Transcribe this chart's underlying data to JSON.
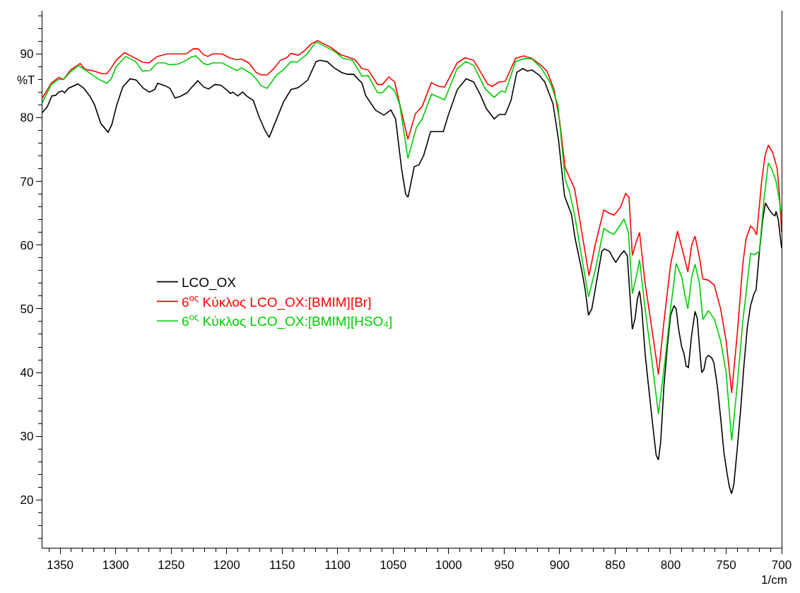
{
  "chart_data": {
    "type": "line",
    "xlabel": "1/cm",
    "ylabel": "%T",
    "xlim": [
      1366,
      700
    ],
    "xticks": [
      1350,
      1300,
      1250,
      1200,
      1150,
      1100,
      1050,
      1000,
      950,
      900,
      850,
      800,
      750,
      700
    ],
    "ylim": [
      12.5,
      96.8
    ],
    "yticks": [
      20,
      30,
      40,
      50,
      60,
      70,
      80,
      90
    ],
    "legend": "left",
    "marker": "none",
    "line_style": "solid",
    "series": [
      {
        "name": "LCO_OX",
        "color": "#000000",
        "x": [
          1366,
          1361.6,
          1357.5,
          1354,
          1351.5,
          1348,
          1346,
          1342.6,
          1334,
          1328.5,
          1323,
          1319,
          1313.4,
          1306.8,
          1303.5,
          1299,
          1293.6,
          1287,
          1281.6,
          1275,
          1269.6,
          1265,
          1262,
          1255.4,
          1251,
          1246.6,
          1242.3,
          1235.7,
          1231.3,
          1226,
          1220.6,
          1216.2,
          1210.7,
          1205.3,
          1201,
          1196.5,
          1194.4,
          1190,
          1185.7,
          1181.3,
          1176,
          1170.5,
          1166,
          1161.7,
          1154,
          1148.7,
          1142,
          1135.6,
          1127,
          1119.4,
          1116,
          1109.5,
          1103,
          1096.5,
          1091,
          1085.6,
          1078,
          1074.8,
          1066,
          1058.5,
          1052,
          1047.8,
          1042.5,
          1038.7,
          1036.6,
          1031,
          1026.8,
          1022.6,
          1016.3,
          1004.8,
          1000.5,
          992.2,
          984.2,
          977.5,
          971.2,
          966,
          959,
          954.4,
          949,
          943.8,
          938.6,
          933.3,
          929,
          925,
          918.6,
          913.4,
          906,
          901,
          895.6,
          889.3,
          886,
          880,
          877,
          874,
          871,
          866,
          862,
          859.5,
          855,
          852,
          849.4,
          845,
          842,
          839,
          837,
          834.5,
          832,
          830,
          828,
          826,
          823,
          820,
          815,
          813,
          811,
          809,
          806,
          803,
          800,
          797,
          795,
          793,
          790,
          788,
          786,
          784,
          781,
          778,
          776,
          774,
          772,
          770,
          768,
          766,
          763,
          761,
          758,
          755,
          752,
          749,
          747,
          745,
          743,
          740,
          737,
          734,
          731,
          728,
          725,
          723,
          720,
          717,
          714.6,
          711,
          708,
          706,
          705,
          703,
          700
        ],
        "values": [
          80.8,
          81.7,
          83.4,
          83.5,
          84,
          84.2,
          83.9,
          84.6,
          85.3,
          84.6,
          83.3,
          82,
          79.1,
          77.7,
          78.9,
          82,
          84.8,
          86.1,
          85.9,
          84.6,
          84,
          84.4,
          85.4,
          85,
          84.6,
          83.1,
          83.3,
          83.9,
          84.8,
          85.8,
          84.8,
          84.5,
          85.2,
          85.1,
          84.5,
          83.8,
          84,
          83.4,
          84,
          83.3,
          82.7,
          80,
          78.2,
          76.9,
          80.2,
          82.5,
          84.4,
          84.7,
          85.9,
          88.8,
          89,
          88.8,
          87.8,
          87.1,
          86.8,
          86.8,
          85.4,
          83.5,
          81.2,
          80.4,
          81.2,
          79.8,
          72.1,
          68,
          67.5,
          72.3,
          72.6,
          74,
          77.8,
          77.8,
          80.3,
          84.4,
          86.1,
          85.6,
          83.5,
          81.4,
          79.8,
          80.5,
          80.5,
          82.7,
          87.1,
          87.7,
          87.3,
          87.5,
          86.7,
          85.6,
          82.2,
          76.5,
          67.7,
          64.8,
          61,
          56,
          53,
          49,
          50,
          55,
          59,
          59.4,
          59,
          58,
          57.3,
          58.5,
          59.1,
          58.3,
          53,
          46.8,
          48.5,
          51.5,
          52.8,
          50,
          43,
          38,
          30,
          27,
          26.3,
          29,
          38,
          44,
          49,
          50.5,
          50,
          47,
          44,
          43,
          41,
          40.8,
          46,
          49.6,
          48.5,
          44,
          40,
          40.5,
          42.3,
          42.7,
          42.3,
          41.5,
          38,
          33,
          27.5,
          24,
          22,
          21,
          22.5,
          28,
          34,
          41,
          47,
          50.5,
          52.3,
          53,
          59,
          64,
          66.6,
          65.5,
          64.8,
          64.6,
          65.3,
          64,
          59.5
        ]
      },
      {
        "name": "6$^{ος}$ Κύκλος LCO_OX:[BMIM][Br]",
        "color": "#ff0000",
        "x": [
          1366,
          1358,
          1351.5,
          1347,
          1340.5,
          1332,
          1327.6,
          1319,
          1312.4,
          1308,
          1304,
          1299.6,
          1292,
          1282,
          1275.7,
          1270,
          1262.5,
          1253.8,
          1236.7,
          1230,
          1225.6,
          1221,
          1217,
          1212.7,
          1204,
          1197.6,
          1191,
          1186.5,
          1180,
          1173.5,
          1169,
          1163.6,
          1158,
          1151.6,
          1146,
          1142,
          1135.5,
          1130,
          1123.6,
          1118,
          1112.6,
          1106,
          1097.5,
          1088.7,
          1084.5,
          1078,
          1072.5,
          1064,
          1059.7,
          1054,
          1048.6,
          1044.3,
          1036.7,
          1030,
          1023.8,
          1015.6,
          1009,
          1003.7,
          992.3,
          985,
          977.5,
          971,
          965,
          961,
          954.6,
          949,
          939.7,
          932.4,
          925,
          916.6,
          911.4,
          905,
          900,
          895,
          886.6,
          880,
          873.5,
          868,
          860.2,
          855,
          851,
          845,
          840.6,
          837.5,
          834.5,
          831,
          828,
          823,
          817,
          811,
          806,
          800,
          793.8,
          789,
          784.5,
          781,
          778,
          774,
          771,
          766,
          760.6,
          755,
          750,
          745,
          740,
          735,
          732,
          728,
          725,
          722.5,
          718,
          715,
          712,
          708,
          704,
          702,
          700
        ],
        "values": [
          83.1,
          85.4,
          86.3,
          86,
          87.5,
          88.5,
          87.6,
          87.3,
          86.9,
          86.9,
          87.8,
          89,
          90.2,
          89.3,
          88.7,
          88.6,
          89.6,
          90,
          90,
          90.8,
          90.8,
          89.9,
          89.6,
          90,
          90,
          89.4,
          89.1,
          89.2,
          88.6,
          87.1,
          86.7,
          86.7,
          87.6,
          89,
          89.4,
          90.1,
          89.8,
          90.5,
          91.6,
          92.1,
          91.6,
          91,
          89.9,
          89.4,
          89.1,
          87.7,
          87.5,
          85.2,
          85.2,
          86.4,
          85.6,
          82.3,
          76.6,
          80.6,
          81.8,
          85.5,
          84.9,
          84.8,
          88.6,
          89.4,
          89,
          87.1,
          85.3,
          84.9,
          85.6,
          85.7,
          89.3,
          89.7,
          89.3,
          88.2,
          87.3,
          84.4,
          79.5,
          72.1,
          68.9,
          62,
          55.2,
          60,
          65.5,
          65,
          64.7,
          66,
          68.1,
          67.5,
          58.4,
          60.5,
          62,
          54,
          47,
          39.7,
          48,
          57,
          62.2,
          59,
          55.8,
          60,
          61.4,
          58,
          54.7,
          54.5,
          53.7,
          50,
          45,
          36.8,
          46,
          57,
          61,
          63,
          62.5,
          61.6,
          70,
          74,
          75.7,
          74.5,
          72,
          68,
          62
        ]
      },
      {
        "name": "6$^{ος}$ Κύκλος LCO_OX:[BMIM][HSO₄]",
        "color": "#00cc00",
        "x": [
          1366,
          1358,
          1351.5,
          1347,
          1340.5,
          1333.5,
          1326,
          1315,
          1308,
          1304,
          1299.6,
          1291,
          1282,
          1275.7,
          1269,
          1262.5,
          1256,
          1251.5,
          1244,
          1238.6,
          1232,
          1227.7,
          1221,
          1217,
          1212.7,
          1204,
          1197.6,
          1191,
          1186.5,
          1178,
          1173.5,
          1169,
          1163.6,
          1155,
          1149.6,
          1142,
          1136.7,
          1128,
          1120.4,
          1118,
          1110.6,
          1102,
          1095.4,
          1086.7,
          1078,
          1072.5,
          1064,
          1059.7,
          1054,
          1048.6,
          1044,
          1036.7,
          1029,
          1023.8,
          1015.4,
          1003.7,
          992.3,
          984.6,
          977.5,
          967,
          959,
          952.5,
          949,
          939.7,
          931.3,
          925,
          916.6,
          908,
          901.6,
          895,
          891,
          886.6,
          880,
          874,
          868,
          860.2,
          855,
          851,
          846,
          842,
          838,
          834.5,
          831,
          828,
          823,
          817,
          811,
          805,
          800,
          795,
          790,
          787,
          784.5,
          781,
          778,
          774,
          771,
          766,
          760.6,
          755,
          750,
          745,
          740,
          735,
          731,
          728,
          724.6,
          720,
          716,
          712,
          709,
          705,
          702,
          700
        ],
        "values": [
          82.4,
          85.2,
          86,
          86,
          87.2,
          88.2,
          87.3,
          86,
          85.4,
          86.1,
          88,
          89.6,
          88.8,
          87.3,
          87.4,
          88.6,
          88.6,
          88.3,
          88.4,
          88.8,
          89.5,
          89.7,
          88.5,
          88.3,
          88.6,
          88.6,
          88,
          87.4,
          87.8,
          86.9,
          86.1,
          85,
          84.6,
          86.7,
          87.4,
          88.8,
          88.7,
          89.9,
          91.7,
          91.8,
          91.1,
          90.3,
          89.3,
          89,
          86.5,
          86.6,
          83.9,
          83.9,
          85,
          84.2,
          82,
          73.6,
          78.5,
          79.8,
          83.7,
          82.8,
          87.7,
          88.8,
          88.2,
          84.5,
          83.2,
          84.2,
          84,
          88.8,
          89.3,
          89.2,
          87.8,
          85.3,
          82,
          70.3,
          68.3,
          64.8,
          58,
          51.9,
          56,
          62.6,
          62,
          61.7,
          63,
          64.1,
          62,
          52.4,
          55,
          57.7,
          50,
          42,
          33.5,
          42,
          50,
          57.1,
          55,
          52,
          50,
          55,
          57,
          54,
          48.3,
          49.7,
          48.4,
          45,
          40,
          29.3,
          38,
          48,
          54,
          58.7,
          58.5,
          59,
          67,
          72.9,
          72,
          70,
          67,
          64.7
        ]
      }
    ]
  }
}
